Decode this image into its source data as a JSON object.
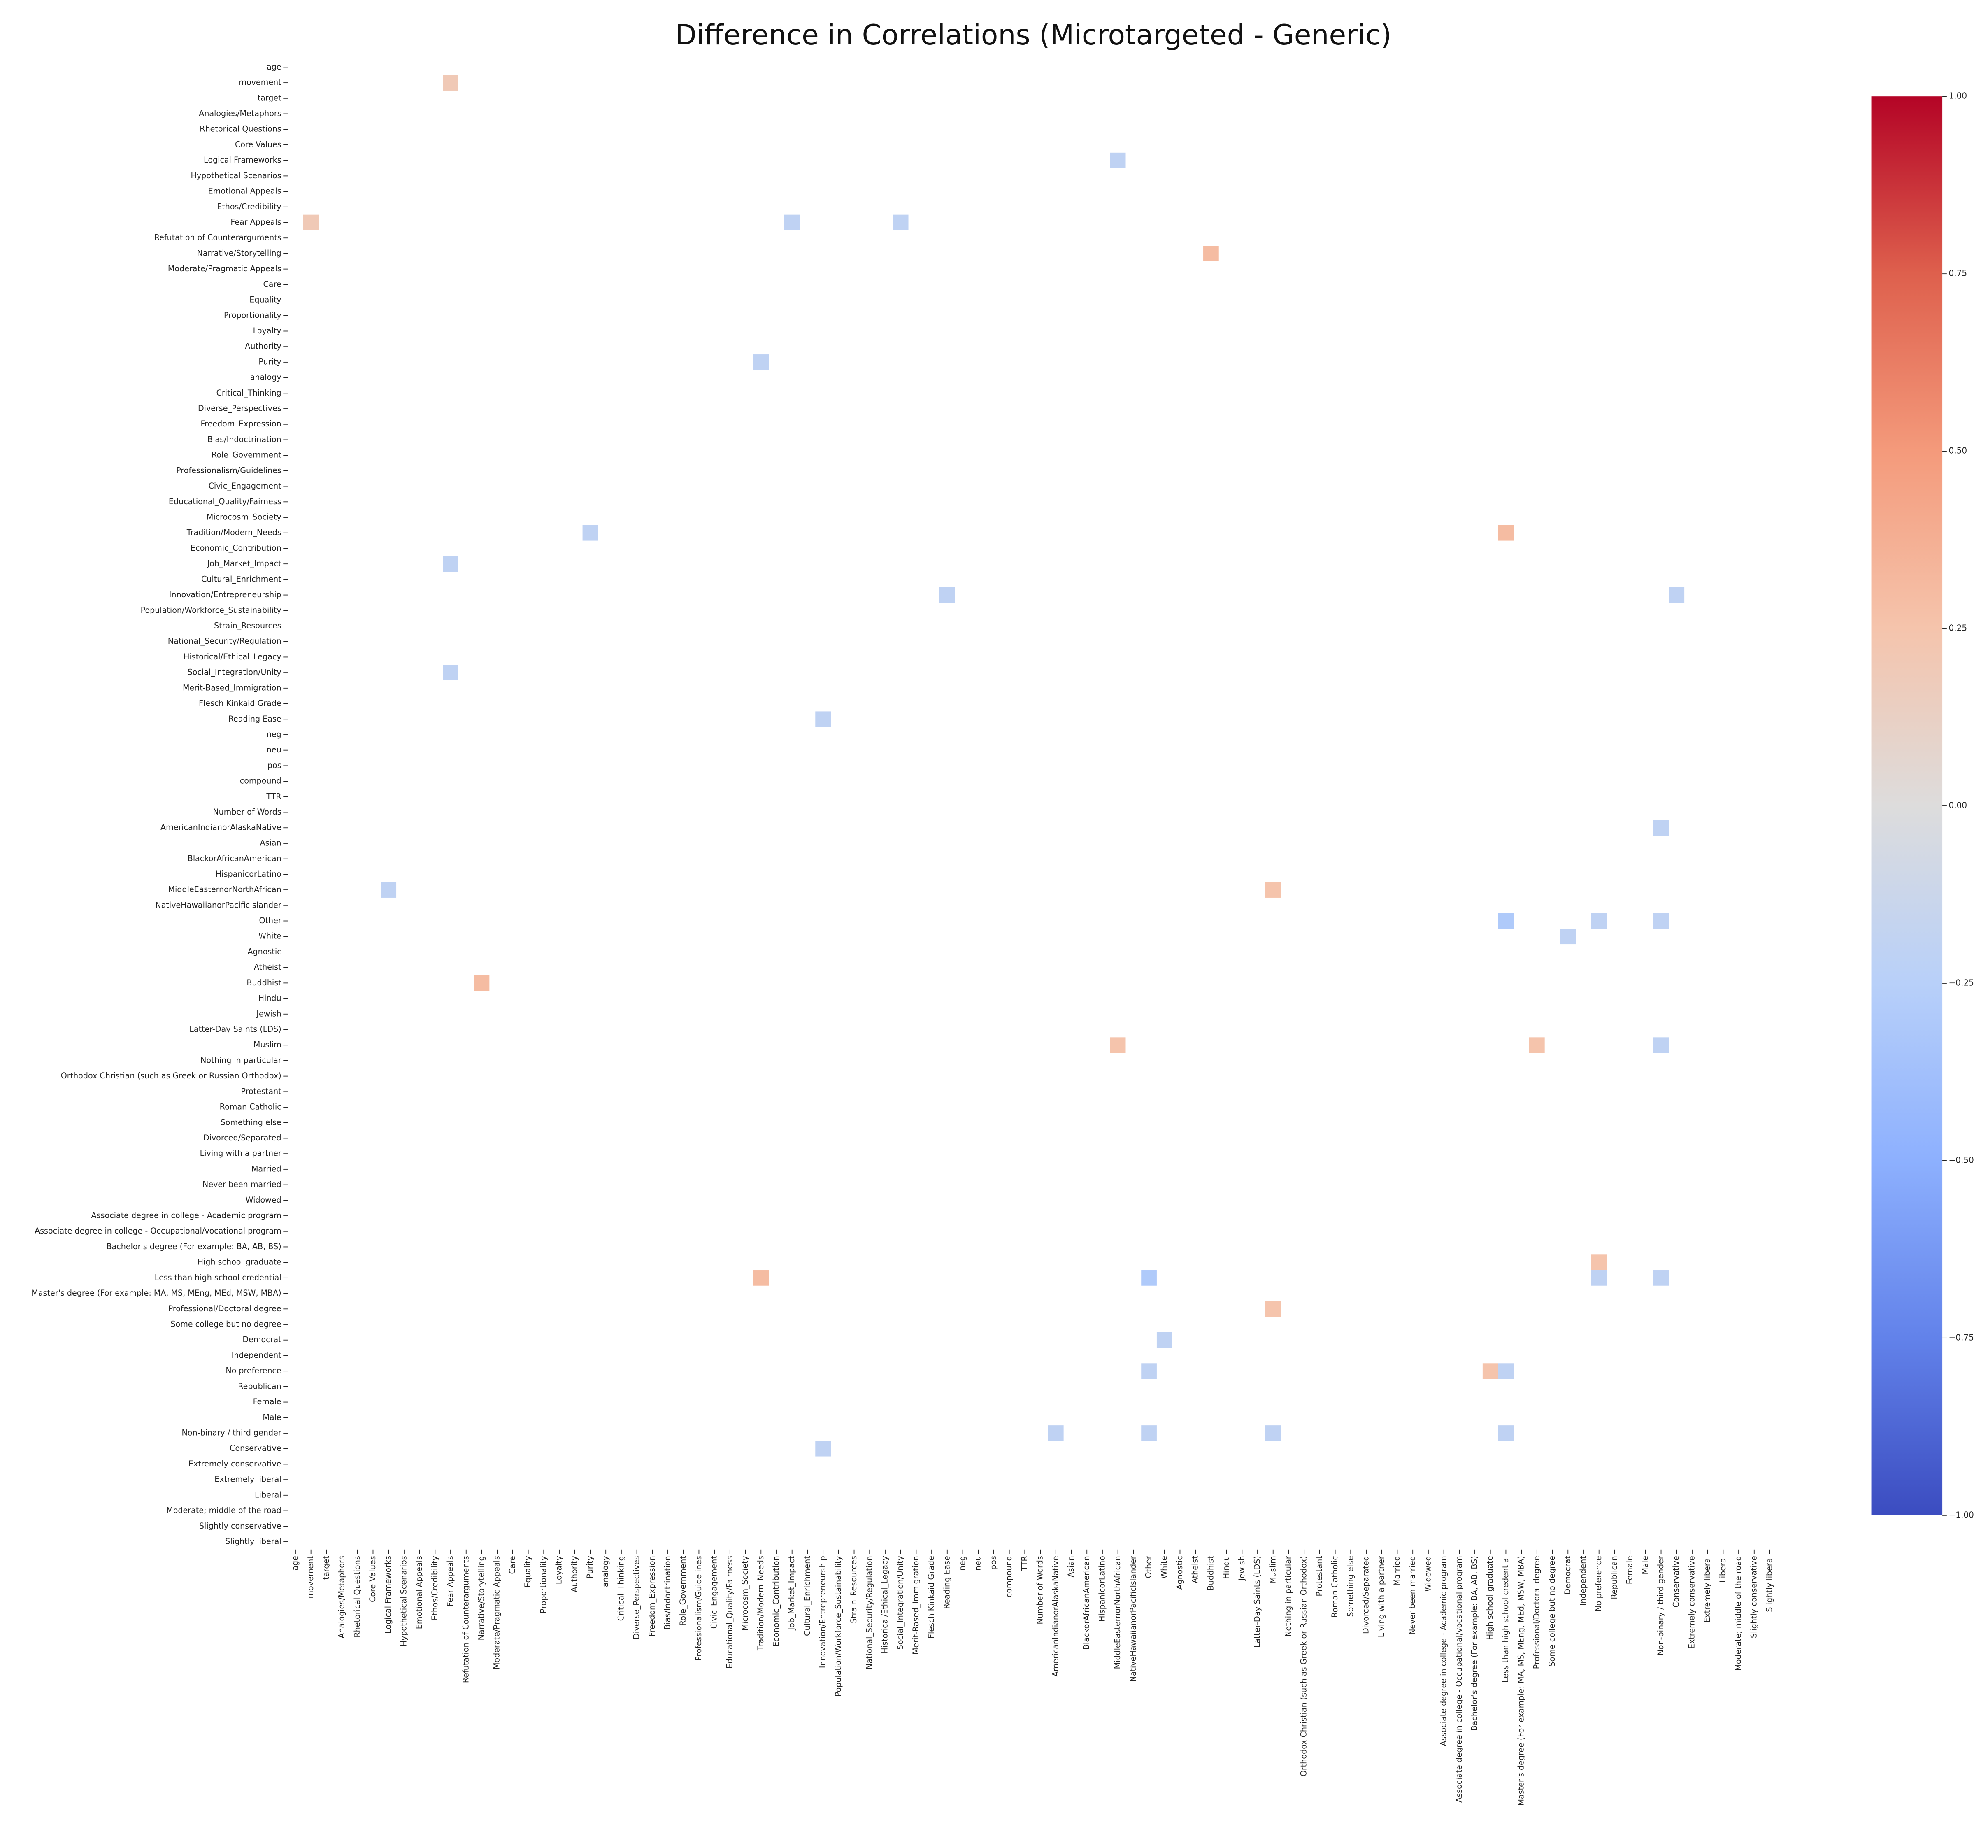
{
  "chart_data": {
    "type": "heatmap",
    "title": "Difference in Correlations (Microtargeted - Generic)",
    "categories": [
      "age",
      "movement",
      "target",
      "Analogies/Metaphors",
      "Rhetorical Questions",
      "Core Values",
      "Logical Frameworks",
      "Hypothetical Scenarios",
      "Emotional Appeals",
      "Ethos/Credibility",
      "Fear Appeals",
      "Refutation of Counterarguments",
      "Narrative/Storytelling",
      "Moderate/Pragmatic Appeals",
      "Care",
      "Equality",
      "Proportionality",
      "Loyalty",
      "Authority",
      "Purity",
      "analogy",
      "Critical_Thinking",
      "Diverse_Perspectives",
      "Freedom_Expression",
      "Bias/Indoctrination",
      "Role_Government",
      "Professionalism/Guidelines",
      "Civic_Engagement",
      "Educational_Quality/Fairness",
      "Microcosm_Society",
      "Tradition/Modern_Needs",
      "Economic_Contribution",
      "Job_Market_Impact",
      "Cultural_Enrichment",
      "Innovation/Entrepreneurship",
      "Population/Workforce_Sustainability",
      "Strain_Resources",
      "National_Security/Regulation",
      "Historical/Ethical_Legacy",
      "Social_Integration/Unity",
      "Merit-Based_Immigration",
      "Flesch Kinkaid Grade",
      "Reading Ease",
      "neg",
      "neu",
      "pos",
      "compound",
      "TTR",
      "Number of Words",
      "AmericanIndianorAlaskaNative",
      "Asian",
      "BlackorAfricanAmerican",
      "HispanicorLatino",
      "MiddleEasternorNorthAfrican",
      "NativeHawaiianorPacificIslander",
      "Other",
      "White",
      "Agnostic",
      "Atheist",
      "Buddhist",
      "Hindu",
      "Jewish",
      "Latter-Day Saints (LDS)",
      "Muslim",
      "Nothing in particular",
      "Orthodox Christian (such as Greek or Russian Orthodox)",
      "Protestant",
      "Roman Catholic",
      "Something else",
      "Divorced/Separated",
      "Living with a partner",
      "Married",
      "Never been married",
      "Widowed",
      "Associate degree in college - Academic program",
      "Associate degree in college - Occupational/vocational program",
      "Bachelor's degree (For example: BA, AB, BS)",
      "High school graduate",
      "Less than high school credential",
      "Master's degree (For example: MA, MS, MEng, MEd, MSW, MBA)",
      "Professional/Doctoral degree",
      "Some college but no degree",
      "Democrat",
      "Independent",
      "No preference",
      "Republican",
      "Female",
      "Male",
      "Non-binary / third gender",
      "Conservative",
      "Extremely conservative",
      "Extremely liberal",
      "Liberal",
      "Moderate; middle of the road",
      "Slightly conservative",
      "Slightly liberal"
    ],
    "cells": [
      {
        "y": "movement",
        "x": "Fear Appeals",
        "value": 0.2
      },
      {
        "y": "Logical Frameworks",
        "x": "MiddleEasternorNorthAfrican",
        "value": -0.2
      },
      {
        "y": "Fear Appeals",
        "x": "movement",
        "value": 0.2
      },
      {
        "y": "Fear Appeals",
        "x": "Job_Market_Impact",
        "value": -0.2
      },
      {
        "y": "Fear Appeals",
        "x": "Social_Integration/Unity",
        "value": -0.2
      },
      {
        "y": "Narrative/Storytelling",
        "x": "Buddhist",
        "value": 0.3
      },
      {
        "y": "Purity",
        "x": "Tradition/Modern_Needs",
        "value": -0.2
      },
      {
        "y": "Tradition/Modern_Needs",
        "x": "Purity",
        "value": -0.2
      },
      {
        "y": "Tradition/Modern_Needs",
        "x": "Less than high school credential",
        "value": 0.3
      },
      {
        "y": "Job_Market_Impact",
        "x": "Fear Appeals",
        "value": -0.2
      },
      {
        "y": "Innovation/Entrepreneurship",
        "x": "Reading Ease",
        "value": -0.2
      },
      {
        "y": "Innovation/Entrepreneurship",
        "x": "Conservative",
        "value": -0.2
      },
      {
        "y": "Social_Integration/Unity",
        "x": "Fear Appeals",
        "value": -0.2
      },
      {
        "y": "Reading Ease",
        "x": "Innovation/Entrepreneurship",
        "value": -0.2
      },
      {
        "y": "AmericanIndianorAlaskaNative",
        "x": "Non-binary / third gender",
        "value": -0.2
      },
      {
        "y": "MiddleEasternorNorthAfrican",
        "x": "Logical Frameworks",
        "value": -0.2
      },
      {
        "y": "MiddleEasternorNorthAfrican",
        "x": "Muslim",
        "value": 0.25
      },
      {
        "y": "Other",
        "x": "Less than high school credential",
        "value": -0.3
      },
      {
        "y": "Other",
        "x": "No preference",
        "value": -0.2
      },
      {
        "y": "Other",
        "x": "Non-binary / third gender",
        "value": -0.2
      },
      {
        "y": "White",
        "x": "Democrat",
        "value": -0.2
      },
      {
        "y": "Buddhist",
        "x": "Narrative/Storytelling",
        "value": 0.3
      },
      {
        "y": "Muslim",
        "x": "MiddleEasternorNorthAfrican",
        "value": 0.25
      },
      {
        "y": "Muslim",
        "x": "Professional/Doctoral degree",
        "value": 0.25
      },
      {
        "y": "Muslim",
        "x": "Non-binary / third gender",
        "value": -0.2
      },
      {
        "y": "High school graduate",
        "x": "No preference",
        "value": 0.25
      },
      {
        "y": "Less than high school credential",
        "x": "Tradition/Modern_Needs",
        "value": 0.3
      },
      {
        "y": "Less than high school credential",
        "x": "Other",
        "value": -0.3
      },
      {
        "y": "Less than high school credential",
        "x": "No preference",
        "value": -0.2
      },
      {
        "y": "Less than high school credential",
        "x": "Non-binary / third gender",
        "value": -0.2
      },
      {
        "y": "Professional/Doctoral degree",
        "x": "Muslim",
        "value": 0.25
      },
      {
        "y": "Democrat",
        "x": "White",
        "value": -0.2
      },
      {
        "y": "No preference",
        "x": "Other",
        "value": -0.2
      },
      {
        "y": "No preference",
        "x": "High school graduate",
        "value": 0.25
      },
      {
        "y": "No preference",
        "x": "Less than high school credential",
        "value": -0.2
      },
      {
        "y": "Non-binary / third gender",
        "x": "AmericanIndianorAlaskaNative",
        "value": -0.2
      },
      {
        "y": "Non-binary / third gender",
        "x": "Other",
        "value": -0.2
      },
      {
        "y": "Non-binary / third gender",
        "x": "Muslim",
        "value": -0.2
      },
      {
        "y": "Non-binary / third gender",
        "x": "Less than high school credential",
        "value": -0.2
      },
      {
        "y": "Conservative",
        "x": "Innovation/Entrepreneurship",
        "value": -0.2
      }
    ],
    "colormap": "coolwarm",
    "clim": [
      -1,
      1
    ],
    "colorbar_ticks": [
      {
        "value": 1,
        "label": "1.00"
      },
      {
        "value": 0.75,
        "label": "0.75"
      },
      {
        "value": 0.5,
        "label": "0.50"
      },
      {
        "value": 0.25,
        "label": "0.25"
      },
      {
        "value": 0,
        "label": "0.00"
      },
      {
        "value": -0.25,
        "label": "−0.25"
      },
      {
        "value": -0.5,
        "label": "−0.50"
      },
      {
        "value": -0.75,
        "label": "−0.75"
      },
      {
        "value": -1,
        "label": "−1.00"
      }
    ]
  }
}
